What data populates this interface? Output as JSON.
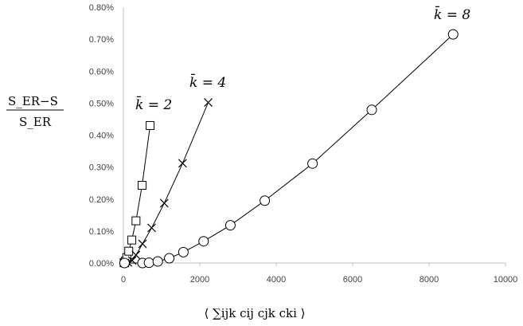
{
  "chart_data": {
    "type": "scatter",
    "ylabel": {
      "numerator": "S_ER−S",
      "denominator": "S_ER"
    },
    "xlabel": "⟨ ∑ijk cij cjk cki ⟩",
    "xlim": [
      0,
      10000
    ],
    "ylim": [
      0,
      0.8
    ],
    "x_ticks": [
      "0",
      "2000",
      "4000",
      "6000",
      "8000",
      "10000"
    ],
    "y_ticks": [
      "0.00%",
      "0.10%",
      "0.20%",
      "0.30%",
      "0.40%",
      "0.50%",
      "0.60%",
      "0.70%",
      "0.80%"
    ],
    "y_unit": "%",
    "grid": false,
    "series": [
      {
        "name": "k̄ = 2",
        "marker": "square",
        "x": [
          20,
          50,
          90,
          140,
          220,
          330,
          490,
          700
        ],
        "y": [
          0.001,
          0.006,
          0.017,
          0.037,
          0.072,
          0.132,
          0.243,
          0.43
        ]
      },
      {
        "name": "k̄ = 4",
        "marker": "x",
        "x": [
          40,
          120,
          230,
          330,
          500,
          740,
          1070,
          1550,
          2220
        ],
        "y": [
          0.0,
          0.002,
          0.008,
          0.025,
          0.06,
          0.11,
          0.187,
          0.312,
          0.502
        ]
      },
      {
        "name": "k̄ = 8",
        "marker": "circle",
        "x": [
          30,
          500,
          670,
          900,
          1200,
          1570,
          2100,
          2800,
          3700,
          4950,
          6500,
          8630
        ],
        "y": [
          0.0,
          0.0,
          0.001,
          0.005,
          0.015,
          0.034,
          0.068,
          0.118,
          0.195,
          0.311,
          0.479,
          0.715
        ]
      }
    ]
  }
}
